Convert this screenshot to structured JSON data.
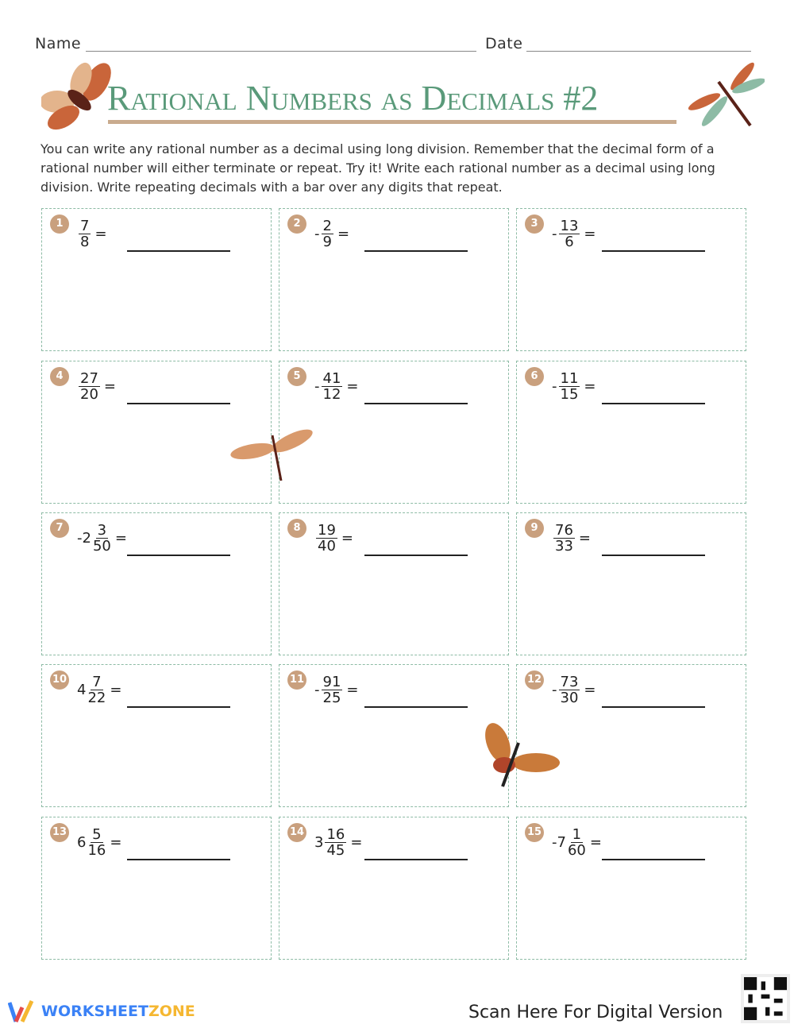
{
  "header": {
    "name_label": "Name",
    "date_label": "Date",
    "title": "Rational Numbers as Decimals #2"
  },
  "instructions": "You can write any rational number as a decimal using long division. Remember that the decimal form of a rational number will either terminate or repeat. Try it! Write each rational number as a decimal using long division. Write repeating decimals with a bar over any digits that repeat.",
  "problems": [
    {
      "n": "1",
      "sign": "",
      "whole": "",
      "num": "7",
      "den": "8"
    },
    {
      "n": "2",
      "sign": "-",
      "whole": "",
      "num": "2",
      "den": "9"
    },
    {
      "n": "3",
      "sign": "-",
      "whole": "",
      "num": "13",
      "den": "6"
    },
    {
      "n": "4",
      "sign": "",
      "whole": "",
      "num": "27",
      "den": "20"
    },
    {
      "n": "5",
      "sign": "-",
      "whole": "",
      "num": "41",
      "den": "12"
    },
    {
      "n": "6",
      "sign": "-",
      "whole": "",
      "num": "11",
      "den": "15"
    },
    {
      "n": "7",
      "sign": "-",
      "whole": "2",
      "num": "3",
      "den": "50"
    },
    {
      "n": "8",
      "sign": "",
      "whole": "",
      "num": "19",
      "den": "40"
    },
    {
      "n": "9",
      "sign": "",
      "whole": "",
      "num": "76",
      "den": "33"
    },
    {
      "n": "10",
      "sign": "",
      "whole": "4",
      "num": "7",
      "den": "22"
    },
    {
      "n": "11",
      "sign": "-",
      "whole": "",
      "num": "91",
      "den": "25"
    },
    {
      "n": "12",
      "sign": "-",
      "whole": "",
      "num": "73",
      "den": "30"
    },
    {
      "n": "13",
      "sign": "",
      "whole": "6",
      "num": "5",
      "den": "16"
    },
    {
      "n": "14",
      "sign": "",
      "whole": "3",
      "num": "16",
      "den": "45"
    },
    {
      "n": "15",
      "sign": "-",
      "whole": "7",
      "num": "1",
      "den": "60"
    }
  ],
  "equals": "=",
  "footer": {
    "brand_a": "WORKSHEET",
    "brand_b": "ZONE",
    "scan": "Scan Here For Digital Version"
  },
  "colors": {
    "title": "#5a9a7a",
    "badge": "#c9a07e",
    "border": "#8dbba5",
    "brand_blue": "#3b82f6",
    "brand_orange": "#f5b731"
  }
}
